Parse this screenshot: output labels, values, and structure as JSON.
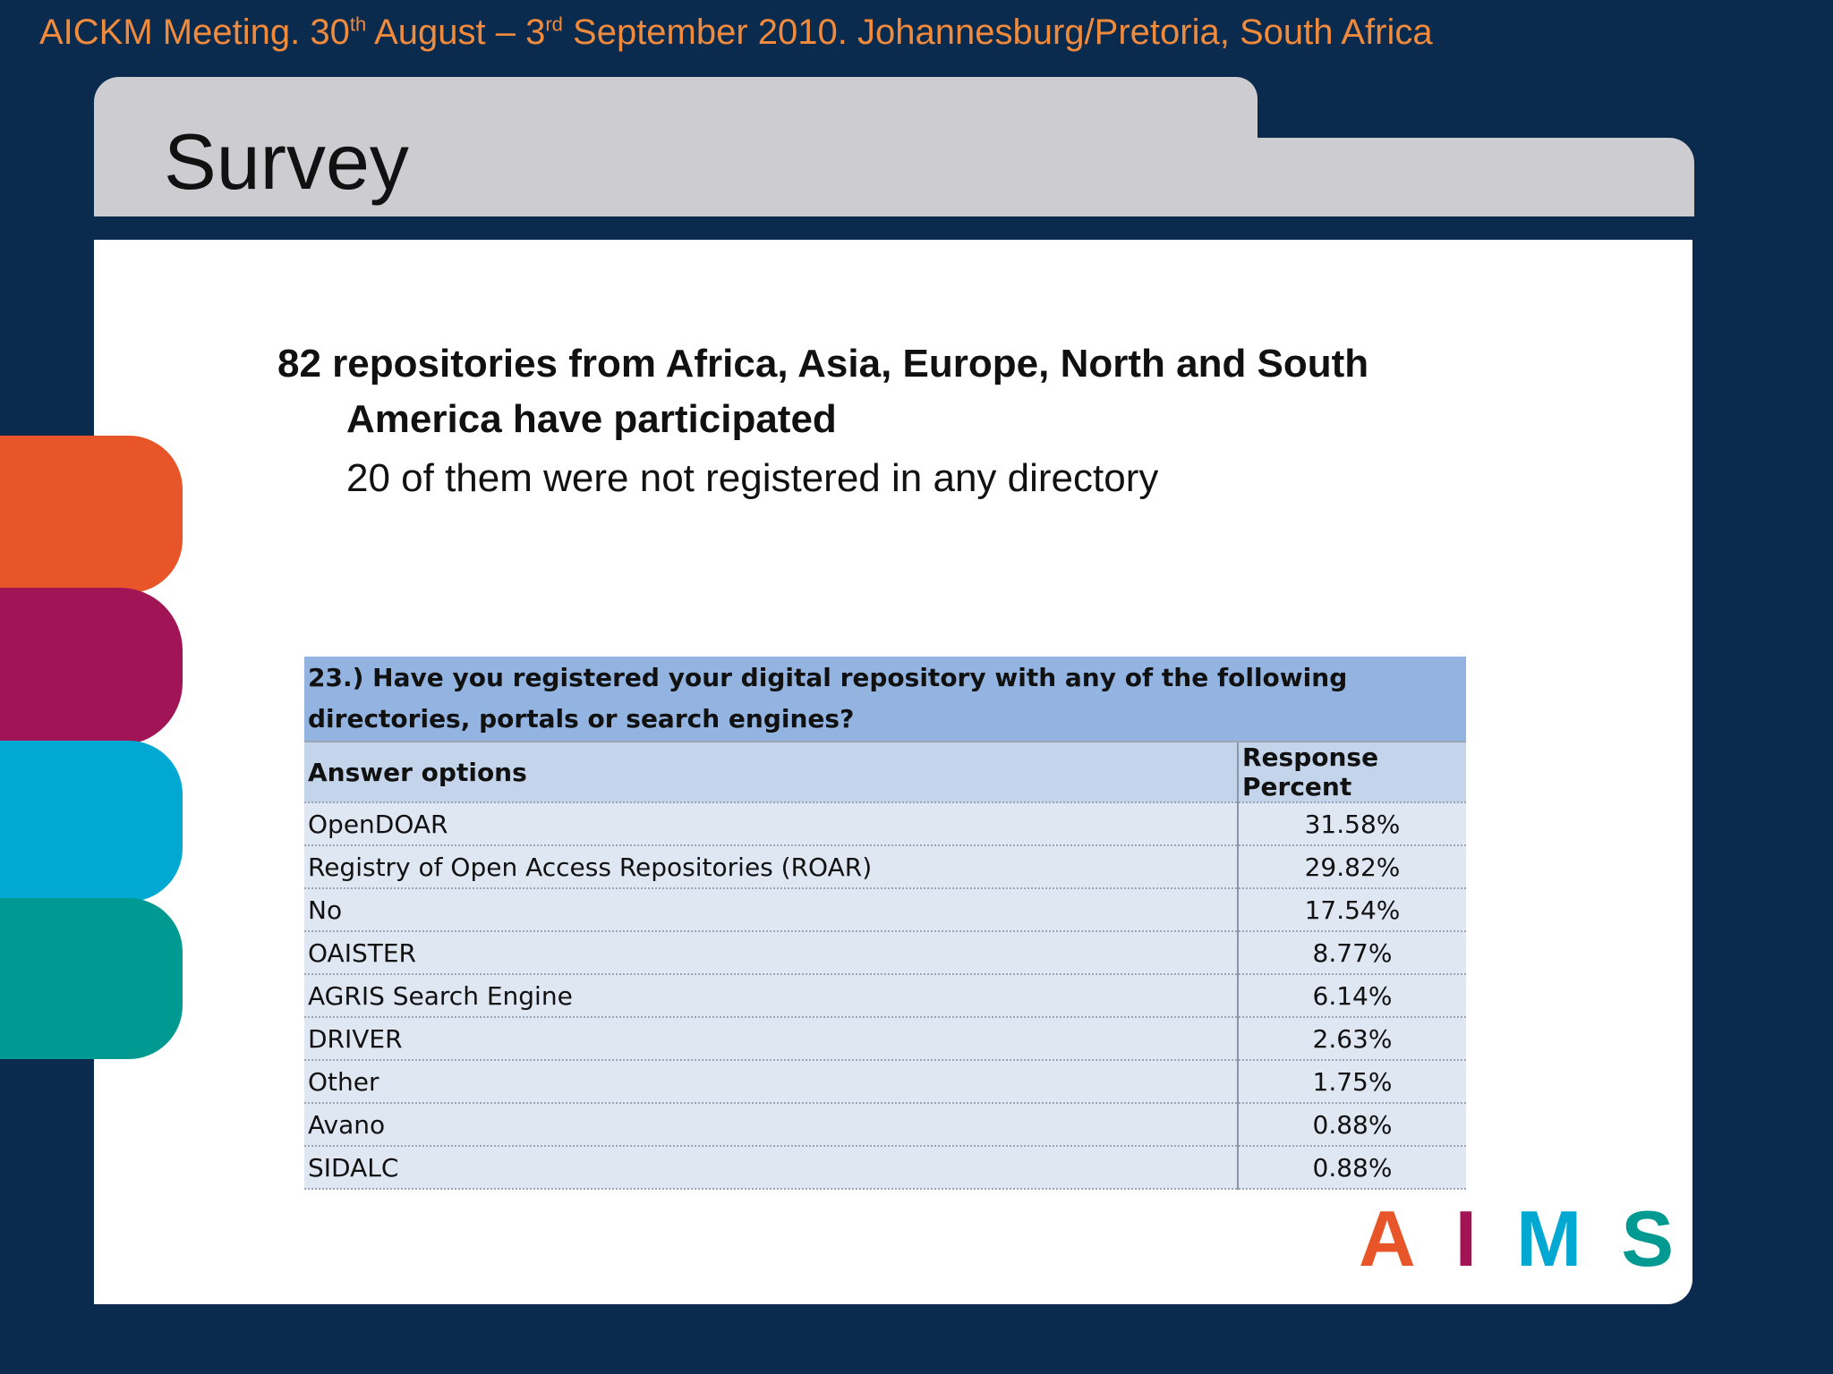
{
  "header": {
    "part1": "AICKM Meeting. 30",
    "sup1": "th",
    "part2": " August – 3",
    "sup2": "rd",
    "part3": " September 2010. Johannesburg/Pretoria, South Africa"
  },
  "slide": {
    "title": "Survey",
    "bullet1_line1": "82 repositories from Africa, Asia, Europe, North and South",
    "bullet1_line2": "America have participated",
    "bullet2": "20 of them were not registered in any directory"
  },
  "table": {
    "question": "23.) Have you registered your digital repository with any of the following directories, portals or search engines?",
    "headers": [
      "Answer options",
      "Response Percent"
    ],
    "rows": [
      {
        "option": "OpenDOAR",
        "percent": "31.58%"
      },
      {
        "option": "Registry of Open Access Repositories (ROAR)",
        "percent": "29.82%"
      },
      {
        "option": "No",
        "percent": "17.54%"
      },
      {
        "option": "OAISTER",
        "percent": "8.77%"
      },
      {
        "option": "AGRIS Search Engine",
        "percent": "6.14%"
      },
      {
        "option": "DRIVER",
        "percent": "2.63%"
      },
      {
        "option": "Other",
        "percent": "1.75%"
      },
      {
        "option": "Avano",
        "percent": "0.88%"
      },
      {
        "option": "SIDALC",
        "percent": "0.88%"
      }
    ]
  },
  "logo": {
    "a": "A",
    "i": "I",
    "m": "M",
    "s": "S"
  },
  "colors": {
    "background": "#0a2a4e",
    "header_text": "#f08a3c",
    "orange": "#e85528",
    "magenta": "#a11455",
    "cyan": "#00a8d2",
    "teal": "#009a92"
  }
}
